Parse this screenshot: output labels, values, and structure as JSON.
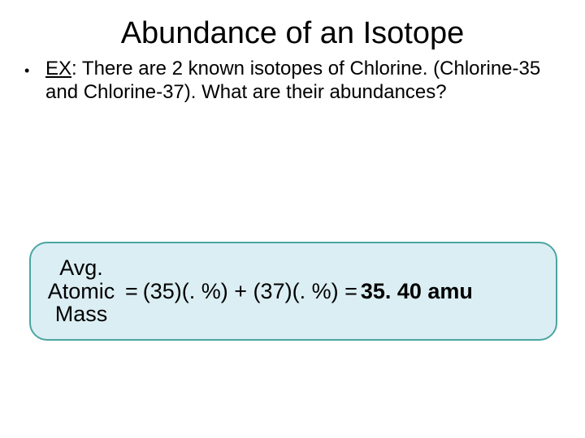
{
  "slide": {
    "title": "Abundance of an Isotope",
    "bullet_glyph": "•",
    "ex_label": "EX",
    "body_text": ": There are 2 known isotopes of Chlorine. (Chlorine-35 and Chlorine-37). What are their abundances?"
  },
  "formula": {
    "left_line1": "Avg.",
    "left_line2": "Atomic",
    "left_line3": "Mass",
    "equals1": "=",
    "expression": "(35)(. %) + (37)(. %) =",
    "result": "35. 40 amu"
  },
  "style": {
    "background_color": "#ffffff",
    "text_color": "#000000",
    "title_fontsize": 38,
    "body_fontsize": 24,
    "formula_fontsize": 27,
    "box_fill": "#dbeef4",
    "box_border": "#4ba5a1",
    "box_border_radius": 22,
    "box_border_width": 2
  }
}
